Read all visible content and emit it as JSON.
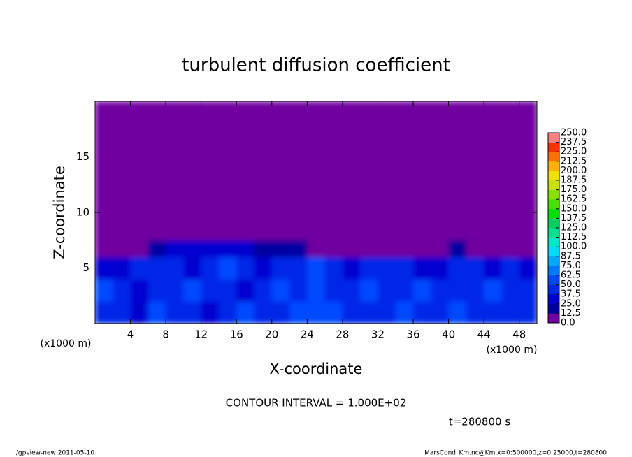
{
  "chart_data": {
    "type": "heatmap",
    "title": "turbulent diffusion coefficient",
    "xlabel": "X-coordinate",
    "ylabel": "Z-coordinate",
    "x_unit": "(x1000 m)",
    "y_unit": "(x1000 m)",
    "xlim": [
      0,
      50
    ],
    "ylim": [
      0,
      20
    ],
    "xticks": [
      4,
      8,
      12,
      16,
      20,
      24,
      28,
      32,
      36,
      40,
      44,
      48
    ],
    "yticks": [
      5,
      10,
      15
    ],
    "x_edges": [
      0,
      2,
      4,
      6,
      8,
      10,
      12,
      14,
      16,
      18,
      20,
      22,
      24,
      26,
      28,
      30,
      32,
      34,
      36,
      38,
      40,
      42,
      44,
      46,
      48,
      50
    ],
    "z_edges": [
      0,
      2,
      4,
      6,
      7.5,
      20
    ],
    "values": [
      [
        40,
        45,
        30,
        50,
        45,
        40,
        35,
        45,
        50,
        40,
        45,
        55,
        60,
        50,
        45,
        40,
        45,
        50,
        40,
        45,
        50,
        45,
        40,
        45,
        40
      ],
      [
        50,
        40,
        35,
        45,
        40,
        50,
        45,
        40,
        35,
        45,
        50,
        45,
        55,
        45,
        40,
        50,
        45,
        40,
        50,
        45,
        40,
        45,
        50,
        40,
        45
      ],
      [
        35,
        30,
        40,
        45,
        40,
        35,
        45,
        50,
        40,
        35,
        40,
        45,
        50,
        40,
        35,
        40,
        45,
        40,
        35,
        30,
        45,
        40,
        35,
        40,
        35
      ],
      [
        0,
        0,
        0,
        20,
        25,
        30,
        35,
        30,
        25,
        20,
        20,
        15,
        0,
        0,
        0,
        0,
        0,
        0,
        0,
        0,
        20,
        0,
        0,
        0,
        0
      ],
      [
        0,
        0,
        0,
        0,
        0,
        0,
        0,
        0,
        0,
        0,
        0,
        0,
        0,
        0,
        0,
        0,
        0,
        0,
        0,
        0,
        0,
        0,
        0,
        0,
        0
      ]
    ],
    "colorbar": {
      "levels": [
        {
          "value": 0,
          "label": "0.0"
        },
        12.5,
        {
          "value": 25,
          "label": "25.0"
        },
        37.5,
        {
          "value": 50,
          "label": "50.0"
        },
        62.5,
        {
          "value": 75,
          "label": "75.0"
        },
        87.5,
        {
          "value": 100,
          "label": "100.0"
        },
        112.5,
        {
          "value": 125,
          "label": "125.0"
        },
        137.5,
        {
          "value": 150,
          "label": "150.0"
        },
        162.5,
        {
          "value": 175,
          "label": "175.0"
        },
        187.5,
        {
          "value": 200,
          "label": "200.0"
        },
        212.5,
        {
          "value": 225,
          "label": "225.0"
        },
        237.5,
        {
          "value": 250,
          "label": "250.0"
        }
      ],
      "colors": [
        "#7000a0",
        "#0000a0",
        "#0000d0",
        "#0028e8",
        "#0048ff",
        "#0078ff",
        "#00a8ff",
        "#00d8ff",
        "#00e8c8",
        "#00e090",
        "#00d060",
        "#00e000",
        "#48e000",
        "#88e000",
        "#c8e000",
        "#f0e000",
        "#ffb000",
        "#ff7000",
        "#ff3000",
        "#ff8080"
      ]
    },
    "contour_note": "CONTOUR INTERVAL = 1.000E+02",
    "time_label": "t=280800 s",
    "footer_left": "./gpview-new  2011-05-10",
    "footer_right": "MarsCond_Km.nc@Km,x=0:500000,z=0:25000,t=280800"
  }
}
